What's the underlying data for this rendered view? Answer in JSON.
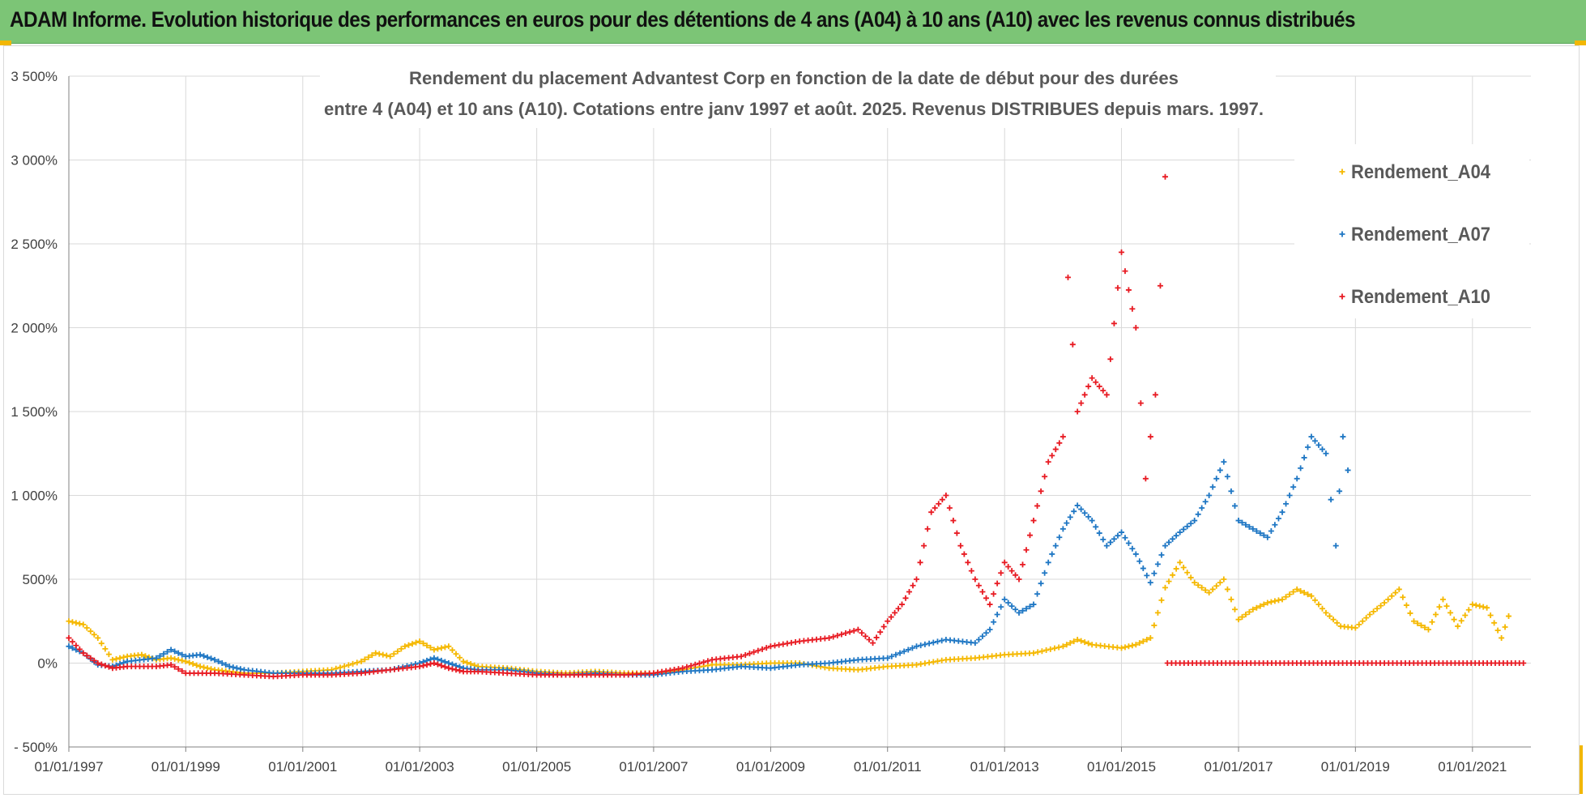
{
  "banner": {
    "text": "ADAM Informe. Evolution historique des performances en euros pour des détentions de 4 ans (A04) à 10 ans (A10) avec les revenus connus distribués"
  },
  "chart_data": {
    "type": "scatter",
    "title_line1": "Rendement du placement Advantest Corp en fonction de la date de début pour des durées",
    "title_line2": "entre 4 (A04) et 10 ans (A10). Cotations entre janv 1997 et août. 2025. Revenus DISTRIBUES depuis mars. 1997.",
    "xlabel": "",
    "ylabel": "",
    "xlim": [
      "1997-01-01",
      "2022-01-01"
    ],
    "ylim": [
      -500,
      3500
    ],
    "ytick_values": [
      -500,
      0,
      500,
      1000,
      1500,
      2000,
      2500,
      3000,
      3500
    ],
    "ytick_labels": [
      "- 500%",
      "0%",
      "500%",
      "1 000%",
      "1 500%",
      "2 000%",
      "2 500%",
      "3 000%",
      "3 500%"
    ],
    "xtick_labels": [
      "01/01/1997",
      "01/01/1999",
      "01/01/2001",
      "01/01/2003",
      "01/01/2005",
      "01/01/2007",
      "01/01/2009",
      "01/01/2011",
      "01/01/2013",
      "01/01/2015",
      "01/01/2017",
      "01/01/2019",
      "01/01/2021"
    ],
    "grid": true,
    "legend_position": "top-right",
    "marker": "+",
    "series": [
      {
        "name": "Rendement_A04",
        "color": "#f5b800",
        "points": [
          [
            "1997-01-01",
            250
          ],
          [
            "1997-04-01",
            230
          ],
          [
            "1997-07-01",
            150
          ],
          [
            "1997-10-01",
            20
          ],
          [
            "1998-01-01",
            40
          ],
          [
            "1998-04-01",
            50
          ],
          [
            "1998-07-01",
            20
          ],
          [
            "1998-10-01",
            30
          ],
          [
            "1999-01-01",
            10
          ],
          [
            "1999-04-01",
            -20
          ],
          [
            "1999-07-01",
            -40
          ],
          [
            "1999-10-01",
            -50
          ],
          [
            "2000-01-01",
            -60
          ],
          [
            "2000-07-01",
            -60
          ],
          [
            "2001-01-01",
            -50
          ],
          [
            "2001-07-01",
            -40
          ],
          [
            "2002-01-01",
            10
          ],
          [
            "2002-04-01",
            60
          ],
          [
            "2002-07-01",
            40
          ],
          [
            "2002-10-01",
            100
          ],
          [
            "2003-01-01",
            130
          ],
          [
            "2003-04-01",
            80
          ],
          [
            "2003-07-01",
            100
          ],
          [
            "2003-10-01",
            10
          ],
          [
            "2004-01-01",
            -20
          ],
          [
            "2004-07-01",
            -30
          ],
          [
            "2005-01-01",
            -50
          ],
          [
            "2005-07-01",
            -60
          ],
          [
            "2006-01-01",
            -50
          ],
          [
            "2006-07-01",
            -60
          ],
          [
            "2007-01-01",
            -60
          ],
          [
            "2007-07-01",
            -40
          ],
          [
            "2008-01-01",
            -10
          ],
          [
            "2008-07-01",
            -10
          ],
          [
            "2009-01-01",
            0
          ],
          [
            "2009-07-01",
            0
          ],
          [
            "2010-01-01",
            -30
          ],
          [
            "2010-07-01",
            -40
          ],
          [
            "2011-01-01",
            -20
          ],
          [
            "2011-07-01",
            -10
          ],
          [
            "2012-01-01",
            20
          ],
          [
            "2012-07-01",
            30
          ],
          [
            "2013-01-01",
            50
          ],
          [
            "2013-07-01",
            60
          ],
          [
            "2014-01-01",
            100
          ],
          [
            "2014-04-01",
            140
          ],
          [
            "2014-07-01",
            110
          ],
          [
            "2015-01-01",
            90
          ],
          [
            "2015-04-01",
            110
          ],
          [
            "2015-07-01",
            150
          ],
          [
            "2015-10-01",
            450
          ],
          [
            "2016-01-01",
            600
          ],
          [
            "2016-04-01",
            480
          ],
          [
            "2016-07-01",
            420
          ],
          [
            "2016-10-01",
            500
          ],
          [
            "2017-01-01",
            260
          ],
          [
            "2017-04-01",
            320
          ],
          [
            "2017-07-01",
            360
          ],
          [
            "2017-10-01",
            380
          ],
          [
            "2018-01-01",
            440
          ],
          [
            "2018-04-01",
            400
          ],
          [
            "2018-07-01",
            300
          ],
          [
            "2018-10-01",
            220
          ],
          [
            "2019-01-01",
            210
          ],
          [
            "2019-04-01",
            290
          ],
          [
            "2019-07-01",
            360
          ],
          [
            "2019-10-01",
            440
          ],
          [
            "2020-01-01",
            250
          ],
          [
            "2020-04-01",
            200
          ],
          [
            "2020-07-01",
            380
          ],
          [
            "2020-10-01",
            220
          ],
          [
            "2021-01-01",
            350
          ],
          [
            "2021-04-01",
            330
          ],
          [
            "2021-07-01",
            150
          ],
          [
            "2021-08-15",
            280
          ]
        ]
      },
      {
        "name": "Rendement_A07",
        "color": "#1f77c4",
        "points": [
          [
            "1997-01-01",
            100
          ],
          [
            "1997-04-01",
            60
          ],
          [
            "1997-07-01",
            -10
          ],
          [
            "1997-10-01",
            -20
          ],
          [
            "1998-01-01",
            10
          ],
          [
            "1998-07-01",
            30
          ],
          [
            "1998-10-01",
            80
          ],
          [
            "1999-01-01",
            40
          ],
          [
            "1999-04-01",
            50
          ],
          [
            "1999-07-01",
            20
          ],
          [
            "1999-10-01",
            -20
          ],
          [
            "2000-01-01",
            -40
          ],
          [
            "2000-07-01",
            -60
          ],
          [
            "2001-01-01",
            -60
          ],
          [
            "2001-07-01",
            -60
          ],
          [
            "2002-01-01",
            -50
          ],
          [
            "2002-07-01",
            -40
          ],
          [
            "2003-01-01",
            0
          ],
          [
            "2003-04-01",
            30
          ],
          [
            "2003-07-01",
            0
          ],
          [
            "2003-10-01",
            -30
          ],
          [
            "2004-01-01",
            -40
          ],
          [
            "2004-07-01",
            -40
          ],
          [
            "2005-01-01",
            -60
          ],
          [
            "2005-07-01",
            -70
          ],
          [
            "2006-01-01",
            -60
          ],
          [
            "2006-07-01",
            -70
          ],
          [
            "2007-01-01",
            -70
          ],
          [
            "2007-07-01",
            -50
          ],
          [
            "2008-01-01",
            -40
          ],
          [
            "2008-07-01",
            -20
          ],
          [
            "2009-01-01",
            -30
          ],
          [
            "2009-07-01",
            -10
          ],
          [
            "2010-01-01",
            0
          ],
          [
            "2010-07-01",
            20
          ],
          [
            "2011-01-01",
            30
          ],
          [
            "2011-07-01",
            100
          ],
          [
            "2012-01-01",
            140
          ],
          [
            "2012-07-01",
            120
          ],
          [
            "2012-10-01",
            200
          ],
          [
            "2013-01-01",
            380
          ],
          [
            "2013-04-01",
            300
          ],
          [
            "2013-07-01",
            350
          ],
          [
            "2013-10-01",
            600
          ],
          [
            "2014-01-01",
            800
          ],
          [
            "2014-04-01",
            940
          ],
          [
            "2014-07-01",
            850
          ],
          [
            "2014-10-01",
            700
          ],
          [
            "2015-01-01",
            780
          ],
          [
            "2015-04-01",
            650
          ],
          [
            "2015-07-01",
            480
          ],
          [
            "2015-10-01",
            700
          ],
          [
            "2016-01-01",
            780
          ],
          [
            "2016-04-01",
            850
          ],
          [
            "2016-07-01",
            1000
          ],
          [
            "2016-10-01",
            1200
          ],
          [
            "2017-01-01",
            850
          ],
          [
            "2017-04-01",
            800
          ],
          [
            "2017-07-01",
            750
          ],
          [
            "2017-10-01",
            900
          ],
          [
            "2018-01-01",
            1100
          ],
          [
            "2018-04-01",
            1350
          ],
          [
            "2018-07-01",
            1250
          ],
          [
            "2018-09-01",
            700
          ],
          [
            "2018-10-15",
            1350
          ],
          [
            "2018-11-15",
            1150
          ]
        ]
      },
      {
        "name": "Rendement_A10",
        "color": "#e81b23",
        "points": [
          [
            "1997-01-01",
            150
          ],
          [
            "1997-04-01",
            60
          ],
          [
            "1997-07-01",
            0
          ],
          [
            "1997-10-01",
            -30
          ],
          [
            "1998-01-01",
            -20
          ],
          [
            "1998-07-01",
            -20
          ],
          [
            "1998-10-01",
            -10
          ],
          [
            "1999-01-01",
            -60
          ],
          [
            "1999-07-01",
            -60
          ],
          [
            "2000-01-01",
            -70
          ],
          [
            "2000-07-01",
            -80
          ],
          [
            "2001-01-01",
            -70
          ],
          [
            "2001-07-01",
            -70
          ],
          [
            "2002-01-01",
            -60
          ],
          [
            "2002-07-01",
            -40
          ],
          [
            "2003-01-01",
            -20
          ],
          [
            "2003-04-01",
            0
          ],
          [
            "2003-07-01",
            -30
          ],
          [
            "2003-10-01",
            -50
          ],
          [
            "2004-01-01",
            -50
          ],
          [
            "2004-07-01",
            -60
          ],
          [
            "2005-01-01",
            -70
          ],
          [
            "2005-07-01",
            -70
          ],
          [
            "2006-01-01",
            -70
          ],
          [
            "2006-07-01",
            -70
          ],
          [
            "2007-01-01",
            -60
          ],
          [
            "2007-07-01",
            -30
          ],
          [
            "2008-01-01",
            20
          ],
          [
            "2008-07-01",
            40
          ],
          [
            "2009-01-01",
            100
          ],
          [
            "2009-07-01",
            130
          ],
          [
            "2010-01-01",
            150
          ],
          [
            "2010-07-01",
            200
          ],
          [
            "2010-10-01",
            120
          ],
          [
            "2011-01-01",
            250
          ],
          [
            "2011-04-01",
            350
          ],
          [
            "2011-07-01",
            500
          ],
          [
            "2011-10-01",
            900
          ],
          [
            "2012-01-01",
            1000
          ],
          [
            "2012-04-01",
            700
          ],
          [
            "2012-07-01",
            500
          ],
          [
            "2012-10-01",
            350
          ],
          [
            "2013-01-01",
            600
          ],
          [
            "2013-04-01",
            500
          ],
          [
            "2013-07-01",
            850
          ],
          [
            "2013-10-01",
            1200
          ],
          [
            "2014-01-01",
            1350
          ],
          [
            "2014-02-01",
            2300
          ],
          [
            "2014-04-01",
            1500
          ],
          [
            "2014-07-01",
            1700
          ],
          [
            "2014-10-01",
            1600
          ],
          [
            "2015-01-01",
            2450
          ],
          [
            "2015-04-01",
            2000
          ],
          [
            "2015-06-01",
            1100
          ],
          [
            "2015-08-01",
            1600
          ],
          [
            "2015-10-01",
            2900
          ],
          [
            "2015-10-15",
            0
          ],
          [
            "2016-07-01",
            0
          ],
          [
            "2017-07-01",
            0
          ],
          [
            "2018-07-01",
            0
          ],
          [
            "2019-07-01",
            0
          ],
          [
            "2020-07-01",
            0
          ],
          [
            "2021-11-15",
            0
          ]
        ]
      }
    ]
  }
}
